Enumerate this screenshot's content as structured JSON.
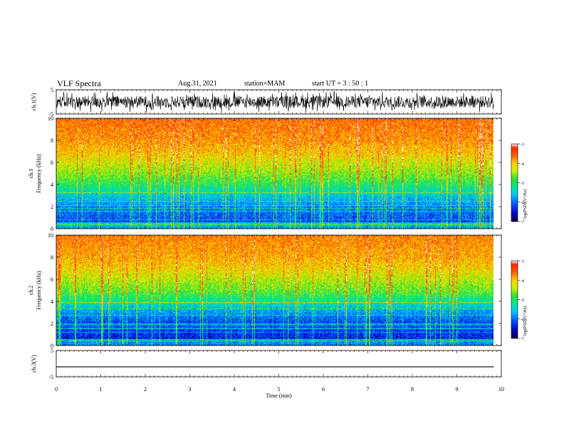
{
  "header": {
    "title": "VLF Spectra",
    "date": "Aug.31, 2021",
    "station": "station=MAM",
    "start": "start  UT =   3  : 50 : 1"
  },
  "colors": {
    "colormap": [
      "#000040",
      "#0000c0",
      "#0040ff",
      "#00c8ff",
      "#00e890",
      "#30e030",
      "#d0f000",
      "#ffd000",
      "#ff6000",
      "#ff2000",
      "#ffffff"
    ]
  },
  "chart_data": [
    {
      "type": "line",
      "name": "ch1-waveform",
      "ylabel": "ch.1(V)",
      "xlim": [
        0,
        10
      ],
      "ylim": [
        -5,
        5
      ],
      "yticks": [
        "5",
        "-5"
      ],
      "description_values": {
        "amplitude_range": [
          -4.5,
          4.5
        ]
      }
    },
    {
      "type": "heatmap",
      "name": "ch1-spectrogram",
      "ylabel_line1": "ch.1",
      "ylabel_line2": "Frequency (kHz)",
      "xlim": [
        0,
        9.83
      ],
      "ylim": [
        0,
        10
      ],
      "yticks": [
        "0",
        "2",
        "4",
        "6",
        "8",
        "10"
      ],
      "colorbar": {
        "label": "log(PSD)(V²/Hz)",
        "range": [
          -7,
          -3
        ],
        "ticks": [
          "-3",
          "-4",
          "-5",
          "-6",
          "-7"
        ]
      },
      "psd_profile": {
        "freq_khz": [
          0,
          1,
          2,
          3,
          4,
          5,
          6,
          7,
          8,
          9,
          10
        ],
        "log_psd": [
          -6.4,
          -6.1,
          -5.9,
          -5.5,
          -5.0,
          -4.6,
          -4.3,
          -4.0,
          -3.8,
          -3.7,
          -3.6
        ]
      }
    },
    {
      "type": "heatmap",
      "name": "ch2-spectrogram",
      "ylabel_line1": "ch.2",
      "ylabel_line2": "Frequency (kHz)",
      "xlim": [
        0,
        9.83
      ],
      "ylim": [
        0,
        10
      ],
      "yticks": [
        "0",
        "2",
        "4",
        "6",
        "8",
        "10"
      ],
      "colorbar": {
        "label": "log(PSD)(V²/Hz)",
        "range": [
          -7,
          -3
        ],
        "ticks": [
          "-3",
          "-4",
          "-5",
          "-6",
          "-7"
        ]
      },
      "psd_profile": {
        "freq_khz": [
          0,
          1,
          2,
          3,
          4,
          5,
          6,
          7,
          8,
          9,
          10
        ],
        "log_psd": [
          -6.6,
          -6.3,
          -6.2,
          -5.8,
          -5.2,
          -4.7,
          -4.4,
          -4.1,
          -3.9,
          -3.8,
          -3.7
        ]
      }
    },
    {
      "type": "line",
      "name": "ch3-waveform",
      "ylabel": "ch.3(V)",
      "xlim": [
        0,
        10
      ],
      "ylim": [
        -5,
        5
      ],
      "yticks": [
        "5",
        "-5"
      ],
      "x": [
        0,
        9.83
      ],
      "y": [
        -1.2,
        -1.2
      ]
    }
  ],
  "xaxis": {
    "label": "Time  (min)",
    "ticks": [
      "0",
      "1",
      "2",
      "3",
      "4",
      "5",
      "6",
      "7",
      "8",
      "9",
      "10"
    ]
  }
}
